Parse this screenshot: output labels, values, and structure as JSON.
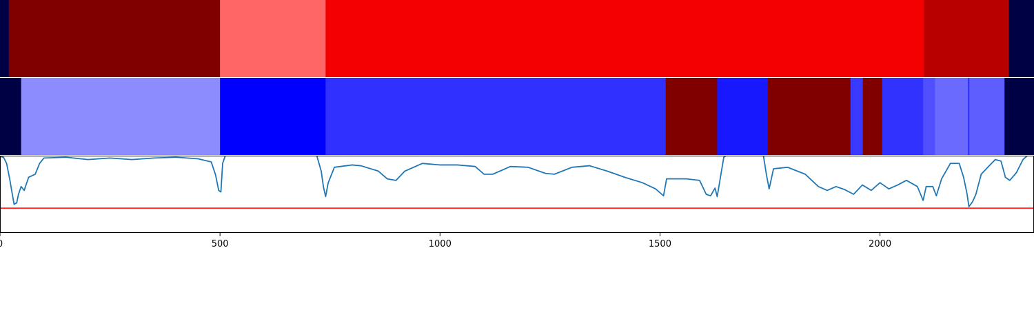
{
  "chart_data": {
    "type": "heatmap",
    "title": "",
    "xlabel": "",
    "ylabel": "",
    "xlim": [
      0,
      2350
    ],
    "xticks": [
      0,
      500,
      1000,
      1500,
      2000
    ],
    "xtick_labels": [
      "0",
      "500",
      "1000",
      "1500",
      "2000"
    ],
    "grid": false,
    "tracks": [
      {
        "type": "segments",
        "segments": [
          {
            "start": 0,
            "end": 20,
            "color": "#000044"
          },
          {
            "start": 20,
            "end": 500,
            "color": "#800000"
          },
          {
            "start": 500,
            "end": 740,
            "color": "#ff6666"
          },
          {
            "start": 740,
            "end": 2100,
            "color": "#f50000"
          },
          {
            "start": 2100,
            "end": 2293,
            "color": "#b80000"
          },
          {
            "start": 2293,
            "end": 2350,
            "color": "#000044"
          }
        ]
      },
      {
        "type": "segments",
        "segments": [
          {
            "start": 0,
            "end": 48,
            "color": "#000044"
          },
          {
            "start": 48,
            "end": 500,
            "color": "#8c8cff"
          },
          {
            "start": 500,
            "end": 740,
            "color": "#0000ff"
          },
          {
            "start": 740,
            "end": 1513,
            "color": "#3030ff"
          },
          {
            "start": 1513,
            "end": 1630,
            "color": "#800000"
          },
          {
            "start": 1630,
            "end": 1745,
            "color": "#1818ff"
          },
          {
            "start": 1745,
            "end": 1933,
            "color": "#800000"
          },
          {
            "start": 1933,
            "end": 1961,
            "color": "#3a3aff"
          },
          {
            "start": 1961,
            "end": 2005,
            "color": "#800000"
          },
          {
            "start": 2005,
            "end": 2098,
            "color": "#3232ff"
          },
          {
            "start": 2098,
            "end": 2125,
            "color": "#5050ff"
          },
          {
            "start": 2125,
            "end": 2200,
            "color": "#6a6aff"
          },
          {
            "start": 2200,
            "end": 2203,
            "color": "#2a2aff"
          },
          {
            "start": 2203,
            "end": 2283,
            "color": "#5e5eff"
          },
          {
            "start": 2283,
            "end": 2350,
            "color": "#000044"
          }
        ]
      },
      {
        "type": "line",
        "ylim": [
          0,
          1
        ],
        "line_color": "#1f77b4",
        "threshold": 0.32,
        "threshold_color": "#ff0000",
        "points": [
          [
            0,
            0.99
          ],
          [
            8,
            0.98
          ],
          [
            15,
            0.9
          ],
          [
            22,
            0.7
          ],
          [
            28,
            0.5
          ],
          [
            32,
            0.37
          ],
          [
            38,
            0.39
          ],
          [
            42,
            0.5
          ],
          [
            48,
            0.6
          ],
          [
            55,
            0.55
          ],
          [
            65,
            0.72
          ],
          [
            80,
            0.76
          ],
          [
            90,
            0.9
          ],
          [
            100,
            0.97
          ],
          [
            150,
            0.98
          ],
          [
            200,
            0.95
          ],
          [
            250,
            0.97
          ],
          [
            300,
            0.95
          ],
          [
            350,
            0.97
          ],
          [
            400,
            0.98
          ],
          [
            450,
            0.96
          ],
          [
            480,
            0.92
          ],
          [
            490,
            0.75
          ],
          [
            497,
            0.55
          ],
          [
            502,
            0.53
          ],
          [
            506,
            0.9
          ],
          [
            512,
            1.0
          ],
          [
            720,
            1.0
          ],
          [
            730,
            0.8
          ],
          [
            735,
            0.6
          ],
          [
            740,
            0.47
          ],
          [
            746,
            0.65
          ],
          [
            760,
            0.85
          ],
          [
            800,
            0.88
          ],
          [
            820,
            0.87
          ],
          [
            860,
            0.8
          ],
          [
            880,
            0.7
          ],
          [
            900,
            0.68
          ],
          [
            920,
            0.8
          ],
          [
            960,
            0.9
          ],
          [
            1000,
            0.88
          ],
          [
            1040,
            0.88
          ],
          [
            1080,
            0.86
          ],
          [
            1100,
            0.76
          ],
          [
            1120,
            0.76
          ],
          [
            1160,
            0.86
          ],
          [
            1200,
            0.85
          ],
          [
            1240,
            0.77
          ],
          [
            1260,
            0.76
          ],
          [
            1300,
            0.85
          ],
          [
            1340,
            0.87
          ],
          [
            1380,
            0.8
          ],
          [
            1420,
            0.72
          ],
          [
            1460,
            0.65
          ],
          [
            1490,
            0.57
          ],
          [
            1508,
            0.48
          ],
          [
            1515,
            0.7
          ],
          [
            1560,
            0.7
          ],
          [
            1590,
            0.68
          ],
          [
            1605,
            0.5
          ],
          [
            1615,
            0.48
          ],
          [
            1625,
            0.58
          ],
          [
            1630,
            0.47
          ],
          [
            1645,
            0.98
          ],
          [
            1650,
            1.0
          ],
          [
            1735,
            1.0
          ],
          [
            1742,
            0.75
          ],
          [
            1748,
            0.57
          ],
          [
            1758,
            0.83
          ],
          [
            1790,
            0.85
          ],
          [
            1830,
            0.76
          ],
          [
            1860,
            0.6
          ],
          [
            1880,
            0.55
          ],
          [
            1900,
            0.6
          ],
          [
            1920,
            0.56
          ],
          [
            1940,
            0.5
          ],
          [
            1960,
            0.62
          ],
          [
            1980,
            0.55
          ],
          [
            2000,
            0.65
          ],
          [
            2020,
            0.57
          ],
          [
            2040,
            0.62
          ],
          [
            2060,
            0.68
          ],
          [
            2085,
            0.6
          ],
          [
            2098,
            0.42
          ],
          [
            2105,
            0.6
          ],
          [
            2120,
            0.6
          ],
          [
            2128,
            0.48
          ],
          [
            2140,
            0.7
          ],
          [
            2160,
            0.9
          ],
          [
            2180,
            0.9
          ],
          [
            2190,
            0.72
          ],
          [
            2198,
            0.5
          ],
          [
            2202,
            0.34
          ],
          [
            2210,
            0.4
          ],
          [
            2218,
            0.5
          ],
          [
            2230,
            0.76
          ],
          [
            2245,
            0.85
          ],
          [
            2262,
            0.95
          ],
          [
            2275,
            0.93
          ],
          [
            2285,
            0.72
          ],
          [
            2295,
            0.68
          ],
          [
            2310,
            0.78
          ],
          [
            2325,
            0.95
          ],
          [
            2335,
            1.0
          ],
          [
            2350,
            1.0
          ]
        ]
      }
    ]
  }
}
